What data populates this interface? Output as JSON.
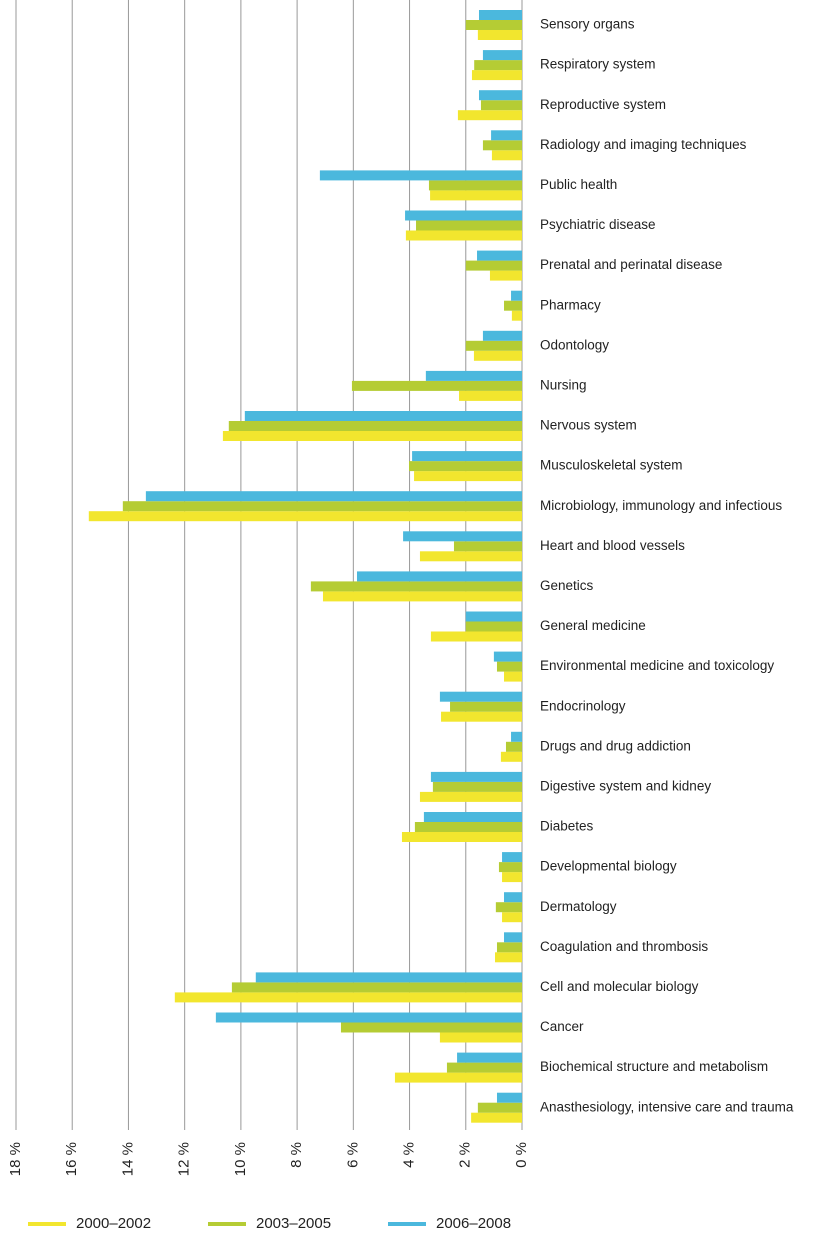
{
  "chart_data": {
    "type": "hbar",
    "categories": [
      "Sensory organs",
      "Respiratory system",
      "Reproductive system",
      "Radiology and imaging techniques",
      "Public health",
      "Psychiatric disease",
      "Prenatal and perinatal disease",
      "Pharmacy",
      "Odontology",
      "Nursing",
      "Nervous system",
      "Musculoskeletal system",
      "Microbiology, immunology and infectious",
      "Heart and blood vessels",
      "Genetics",
      "General medicine",
      "Environmental medicine and toxicology",
      "Endocrinology",
      "Drugs and drug addiction",
      "Digestive system and kidney",
      "Diabetes",
      "Developmental biology",
      "Dermatology",
      "Coagulation and thrombosis",
      "Cell and molecular biology",
      "Cancer",
      "Biochemical structure and metabolism",
      "Anasthesiology, intensive care and trauma"
    ],
    "series": [
      {
        "name": "2000–2002",
        "color": "#f2e62e",
        "values": [
          1.57,
          1.78,
          2.28,
          1.07,
          3.27,
          4.13,
          1.14,
          0.36,
          1.71,
          2.24,
          10.64,
          3.84,
          15.41,
          3.63,
          7.08,
          3.24,
          0.64,
          2.88,
          0.75,
          3.63,
          4.27,
          0.71,
          0.71,
          0.96,
          12.35,
          2.92,
          4.52,
          1.81
        ]
      },
      {
        "name": "2003–2005",
        "color": "#b5cc34",
        "values": [
          2.0,
          1.7,
          1.46,
          1.39,
          3.31,
          3.77,
          2.0,
          0.64,
          2.0,
          6.05,
          10.43,
          4.02,
          14.2,
          2.42,
          7.51,
          2.0,
          0.89,
          2.56,
          0.57,
          3.17,
          3.81,
          0.82,
          0.93,
          0.89,
          10.32,
          6.44,
          2.67,
          1.57
        ]
      },
      {
        "name": "2006–2008",
        "color": "#4bb8dd",
        "values": [
          1.53,
          1.39,
          1.53,
          1.1,
          7.19,
          4.16,
          1.6,
          0.39,
          1.39,
          3.42,
          9.86,
          3.91,
          13.38,
          4.23,
          5.87,
          2.0,
          1.0,
          2.92,
          0.39,
          3.24,
          3.49,
          0.71,
          0.64,
          0.64,
          9.47,
          10.89,
          2.31,
          0.89
        ]
      }
    ],
    "xlim": [
      0,
      18
    ],
    "xticks": [
      {
        "value": 0,
        "label": "0 %"
      },
      {
        "value": 2,
        "label": "2 %"
      },
      {
        "value": 4,
        "label": "4 %"
      },
      {
        "value": 6,
        "label": "6 %"
      },
      {
        "value": 8,
        "label": "8 %"
      },
      {
        "value": 10,
        "label": "10 %"
      },
      {
        "value": 12,
        "label": "12 %"
      },
      {
        "value": 14,
        "label": "14 %"
      },
      {
        "value": 16,
        "label": "16 %"
      },
      {
        "value": 18,
        "label": "18 %"
      }
    ],
    "x_reversed": true,
    "grid": true,
    "legend": "bottom"
  }
}
